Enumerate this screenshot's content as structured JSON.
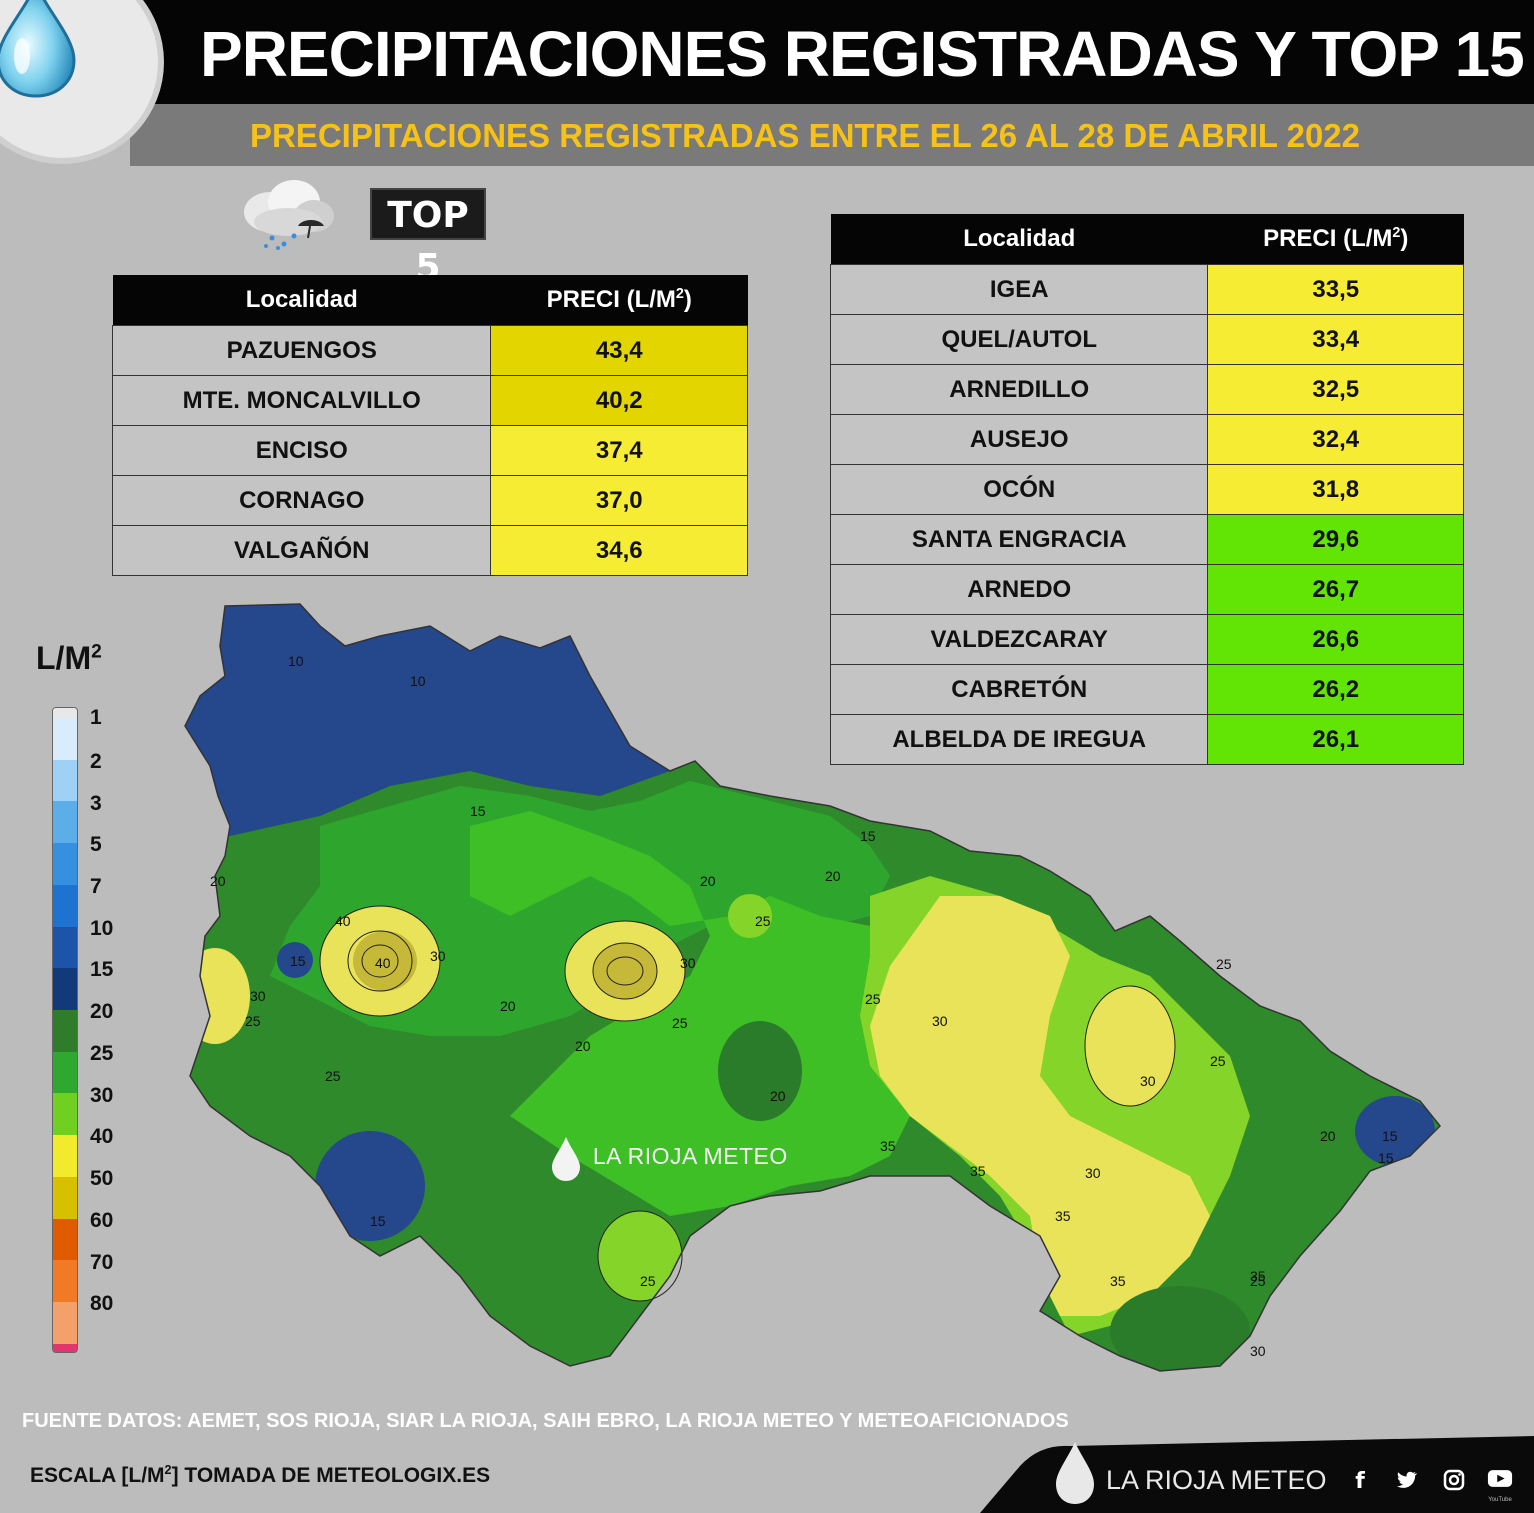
{
  "header": {
    "title": "PRECIPITACIONES REGISTRADAS Y TOP 15",
    "subtitle": "PRECIPITACIONES REGISTRADAS ENTRE EL 26 AL 28 DE ABRIL 2022"
  },
  "top5_badge": "TOP 5",
  "tables": {
    "col_localidad": "Localidad",
    "col_preci": "PRECI (L/M",
    "col_preci_sup": "2",
    "col_preci_close": ")",
    "top5": [
      {
        "loc": "PAZUENGOS",
        "val": "43,4",
        "color": "#e3d600"
      },
      {
        "loc": "MTE. MONCALVILLO",
        "val": "40,2",
        "color": "#e3d600"
      },
      {
        "loc": "ENCISO",
        "val": "37,4",
        "color": "#f6ec33"
      },
      {
        "loc": "CORNAGO",
        "val": "37,0",
        "color": "#f6ec33"
      },
      {
        "loc": "VALGAÑÓN",
        "val": "34,6",
        "color": "#f6ec33"
      }
    ],
    "top15": [
      {
        "loc": "IGEA",
        "val": "33,5",
        "color": "#f6ec33"
      },
      {
        "loc": "QUEL/AUTOL",
        "val": "33,4",
        "color": "#f6ec33"
      },
      {
        "loc": "ARNEDILLO",
        "val": "32,5",
        "color": "#f6ec33"
      },
      {
        "loc": "AUSEJO",
        "val": "32,4",
        "color": "#f6ec33"
      },
      {
        "loc": "OCÓN",
        "val": "31,8",
        "color": "#f6ec33"
      },
      {
        "loc": "SANTA ENGRACIA",
        "val": "29,6",
        "color": "#62e404"
      },
      {
        "loc": "ARNEDO",
        "val": "26,7",
        "color": "#62e404"
      },
      {
        "loc": "VALDEZCARAY",
        "val": "26,6",
        "color": "#62e404"
      },
      {
        "loc": "CABRETÓN",
        "val": "26,2",
        "color": "#62e404"
      },
      {
        "loc": "ALBELDA DE IREGUA",
        "val": "26,1",
        "color": "#62e404"
      }
    ]
  },
  "legend": {
    "title": "L/M",
    "title_sup": "2",
    "levels": [
      {
        "label": "1",
        "color": "#d9ecfb"
      },
      {
        "label": "2",
        "color": "#9fd0f5"
      },
      {
        "label": "3",
        "color": "#5caee9"
      },
      {
        "label": "5",
        "color": "#3590e0"
      },
      {
        "label": "7",
        "color": "#1f73d0"
      },
      {
        "label": "10",
        "color": "#1b54a8"
      },
      {
        "label": "15",
        "color": "#123a7a"
      },
      {
        "label": "20",
        "color": "#2f7d2a"
      },
      {
        "label": "25",
        "color": "#2ea82e"
      },
      {
        "label": "30",
        "color": "#6fd021"
      },
      {
        "label": "40",
        "color": "#f2ea2c"
      },
      {
        "label": "50",
        "color": "#d7c000"
      },
      {
        "label": "60",
        "color": "#e05a00"
      },
      {
        "label": "70",
        "color": "#f07a26"
      },
      {
        "label": "80",
        "color": "#f4a06b"
      }
    ],
    "top_cap_color": "#e8e8e8",
    "bottom_cap_color": "#e0356e"
  },
  "map": {
    "watermark": "LA RIOJA METEO",
    "contour_labels": [
      "10",
      "10",
      "15",
      "15",
      "15",
      "15",
      "15",
      "15",
      "20",
      "20",
      "20",
      "20",
      "20",
      "20",
      "20",
      "20",
      "25",
      "25",
      "25",
      "25",
      "25",
      "25",
      "25",
      "25",
      "25",
      "30",
      "30",
      "30",
      "30",
      "30",
      "30",
      "30",
      "35",
      "35",
      "35",
      "35",
      "35",
      "40",
      "40"
    ]
  },
  "footer": {
    "source": "FUENTE DATOS: AEMET, SOS RIOJA, SIAR LA RIOJA, SAIH EBRO, LA RIOJA METEO  Y METEOAFICIONADOS",
    "scale_note_pre": "ESCALA [L/M",
    "scale_note_sup": "2",
    "scale_note_post": "] TOMADA DE METEOLOGIX.ES",
    "brand": "LA RIOJA METEO",
    "social": [
      "f-icon",
      "twitter-icon",
      "instagram-icon",
      "youtube-icon"
    ],
    "youtube_caption": "YouTube"
  }
}
